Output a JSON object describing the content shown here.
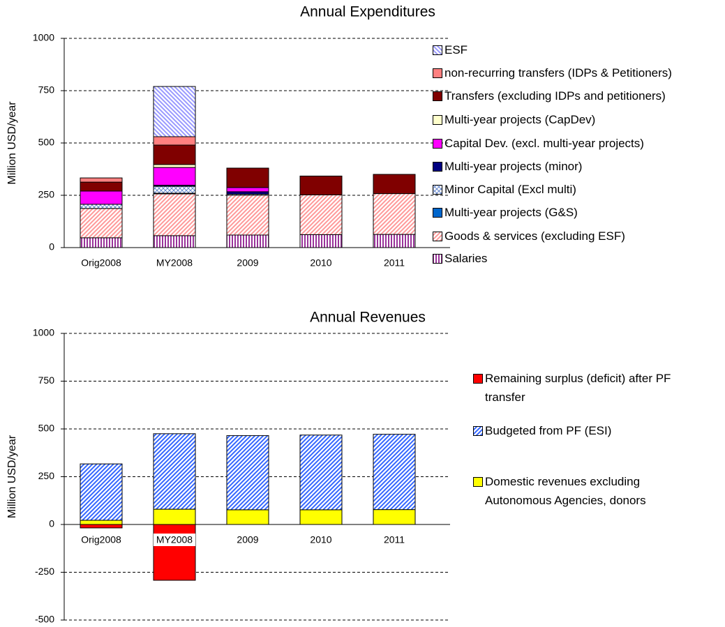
{
  "chart_data": [
    {
      "type": "bar",
      "stacked": true,
      "title": "Annual Expenditures",
      "y_label": "Million USD/year",
      "categories": [
        "Orig2008",
        "MY2008",
        "2009",
        "2010",
        "2011"
      ],
      "ylim": [
        0,
        1000
      ],
      "yticks": [
        0,
        250,
        500,
        750,
        1000
      ],
      "grid": true,
      "legend": "right",
      "series": [
        {
          "name": "Salaries",
          "color": "#993399",
          "pattern": "vertical",
          "values": [
            47,
            57,
            60,
            62,
            63
          ]
        },
        {
          "name": "Goods & services (excluding ESF)",
          "color": "#ff9999",
          "pattern": "diagonal",
          "values": [
            140,
            200,
            190,
            190,
            195
          ]
        },
        {
          "name": "Multi-year projects (G&S)",
          "color": "#0066cc",
          "pattern": "solid",
          "values": [
            0,
            3,
            0,
            0,
            0
          ]
        },
        {
          "name": "Minor Capital (Excl multi)",
          "color": "#6688cc",
          "pattern": "cross",
          "values": [
            20,
            33,
            5,
            0,
            0
          ]
        },
        {
          "name": "Multi-year projects (minor)",
          "color": "#000080",
          "pattern": "solid",
          "values": [
            0,
            5,
            12,
            0,
            0
          ]
        },
        {
          "name": "Capital Dev. (excl. multi-year projects)",
          "color": "#ff00ff",
          "pattern": "solid",
          "values": [
            63,
            85,
            20,
            0,
            0
          ]
        },
        {
          "name": "Multi-year projects (CapDev)",
          "color": "#ffffcc",
          "pattern": "solid",
          "values": [
            0,
            14,
            0,
            0,
            0
          ]
        },
        {
          "name": "Transfers (excluding IDPs and petitioners)",
          "color": "#800000",
          "pattern": "solid",
          "values": [
            43,
            93,
            93,
            90,
            92
          ]
        },
        {
          "name": "non-recurring transfers (IDPs & Petitioners)",
          "color": "#ff8080",
          "pattern": "solid",
          "values": [
            20,
            40,
            0,
            0,
            0
          ]
        },
        {
          "name": "ESF",
          "color": "#9999ff",
          "pattern": "diagonal-down",
          "values": [
            0,
            240,
            0,
            0,
            0
          ]
        }
      ]
    },
    {
      "type": "bar",
      "stacked": true,
      "title": "Annual Revenues",
      "y_label": "Million USD/year",
      "categories": [
        "Orig2008",
        "MY2008",
        "2009",
        "2010",
        "2011"
      ],
      "ylim": [
        -500,
        1000
      ],
      "yticks": [
        -500,
        -250,
        0,
        250,
        500,
        750,
        1000
      ],
      "grid": true,
      "legend": "right",
      "series": [
        {
          "name": "Domestic revenues excluding Autonomous Agencies, donors",
          "color": "#ffff00",
          "pattern": "solid",
          "values": [
            22,
            80,
            77,
            77,
            78
          ]
        },
        {
          "name": "Budgeted from PF (ESI)",
          "color": "#3366ff",
          "pattern": "diagonal",
          "values": [
            295,
            395,
            388,
            391,
            394
          ]
        },
        {
          "name": "Remaining surplus (deficit) after PF transfer",
          "color": "#ff0000",
          "pattern": "solid",
          "values": [
            -18,
            -292,
            0,
            0,
            0
          ]
        }
      ]
    }
  ]
}
